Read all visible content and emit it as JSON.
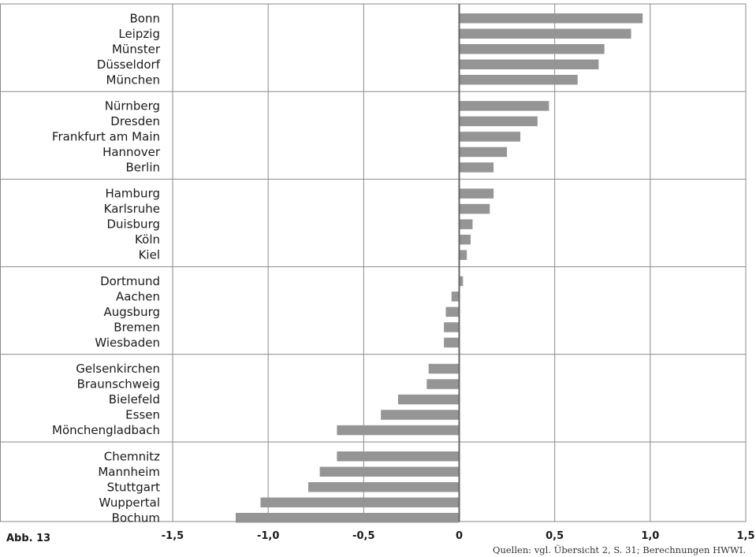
{
  "figure_label": "Abb. 13",
  "source_note": "Quellen: vgl. Übersicht 2, S. 31; Berechnungen HWWI.",
  "colors": {
    "bar": "#959595",
    "grid": "#8a8a8a",
    "zero_line": "#666666"
  },
  "chart_data": {
    "type": "bar",
    "orientation": "horizontal",
    "title": "",
    "xlabel": "",
    "ylabel": "",
    "xlim": [
      -1.5,
      1.5
    ],
    "x_ticks": [
      -1.5,
      -1.0,
      -0.5,
      0,
      0.5,
      1.0,
      1.5
    ],
    "x_tick_labels": [
      "-1,5",
      "-1,0",
      "-0,5",
      "0",
      "0,5",
      "1,0",
      "1,5"
    ],
    "grid": true,
    "groups": [
      {
        "categories": [
          "Bonn",
          "Leipzig",
          "Münster",
          "Düsseldorf",
          "München"
        ],
        "values": [
          0.96,
          0.9,
          0.76,
          0.73,
          0.62
        ]
      },
      {
        "categories": [
          "Nürnberg",
          "Dresden",
          "Frankfurt am Main",
          "Hannover",
          "Berlin"
        ],
        "values": [
          0.47,
          0.41,
          0.32,
          0.25,
          0.18
        ]
      },
      {
        "categories": [
          "Hamburg",
          "Karlsruhe",
          "Duisburg",
          "Köln",
          "Kiel"
        ],
        "values": [
          0.18,
          0.16,
          0.07,
          0.06,
          0.04
        ]
      },
      {
        "categories": [
          "Dortmund",
          "Aachen",
          "Augsburg",
          "Bremen",
          "Wiesbaden"
        ],
        "values": [
          0.02,
          -0.04,
          -0.07,
          -0.08,
          -0.08
        ]
      },
      {
        "categories": [
          "Gelsenkirchen",
          "Braunschweig",
          "Bielefeld",
          "Essen",
          "Mönchengladbach"
        ],
        "values": [
          -0.16,
          -0.17,
          -0.32,
          -0.41,
          -0.64
        ]
      },
      {
        "categories": [
          "Chemnitz",
          "Mannheim",
          "Stuttgart",
          "Wuppertal",
          "Bochum"
        ],
        "values": [
          -0.64,
          -0.73,
          -0.79,
          -1.04,
          -1.17
        ]
      }
    ]
  }
}
